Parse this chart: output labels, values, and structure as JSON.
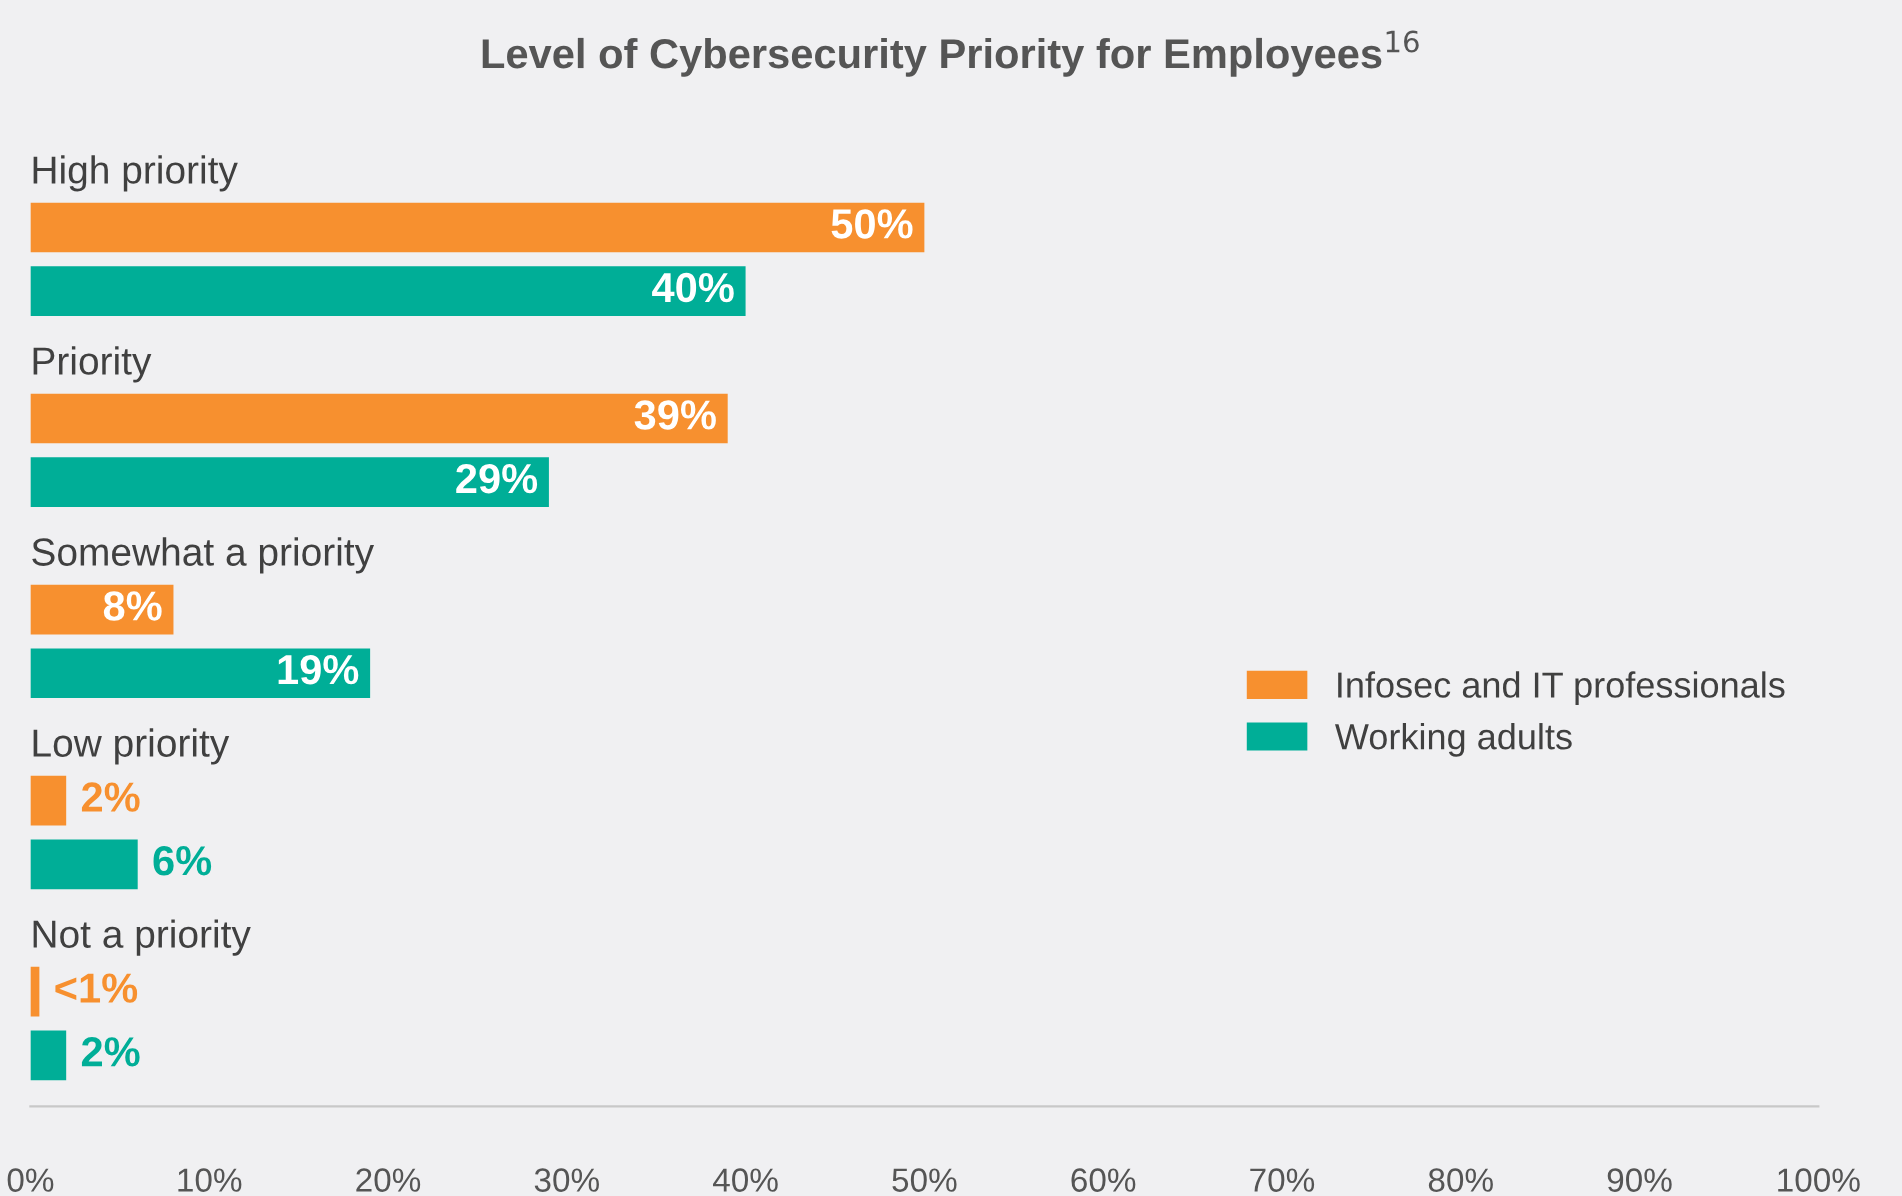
{
  "chart_data": {
    "type": "bar",
    "orientation": "horizontal",
    "title": "Level of Cybersecurity Priority for Employees$^{16}$",
    "categories": [
      "High priority",
      "Priority",
      "Somewhat a priority",
      "Low priority",
      "Not a priority"
    ],
    "series": [
      {
        "name": "Infosec and IT professionals",
        "color": "#f7902f",
        "values": [
          50,
          39,
          8,
          2,
          0.5
        ],
        "value_labels": [
          "50%",
          "39%",
          "8%",
          "2%",
          "<1%"
        ]
      },
      {
        "name": "Working adults",
        "color": "#00ae97",
        "values": [
          40,
          29,
          19,
          6,
          2
        ],
        "value_labels": [
          "40%",
          "29%",
          "19%",
          "6%",
          "2%"
        ]
      }
    ],
    "xlim": [
      0,
      100
    ],
    "xticks": [
      {
        "value": 0,
        "label": "0%"
      },
      {
        "value": 10,
        "label": "10%"
      },
      {
        "value": 20,
        "label": "20%"
      },
      {
        "value": 30,
        "label": "30%"
      },
      {
        "value": 40,
        "label": "40%"
      },
      {
        "value": 50,
        "label": "50%"
      },
      {
        "value": 60,
        "label": "60%"
      },
      {
        "value": 70,
        "label": "70%"
      },
      {
        "value": 80,
        "label": "80%"
      },
      {
        "value": 90,
        "label": "90%"
      },
      {
        "value": 100,
        "label": "100%"
      }
    ],
    "grid": false,
    "legend": "right"
  }
}
